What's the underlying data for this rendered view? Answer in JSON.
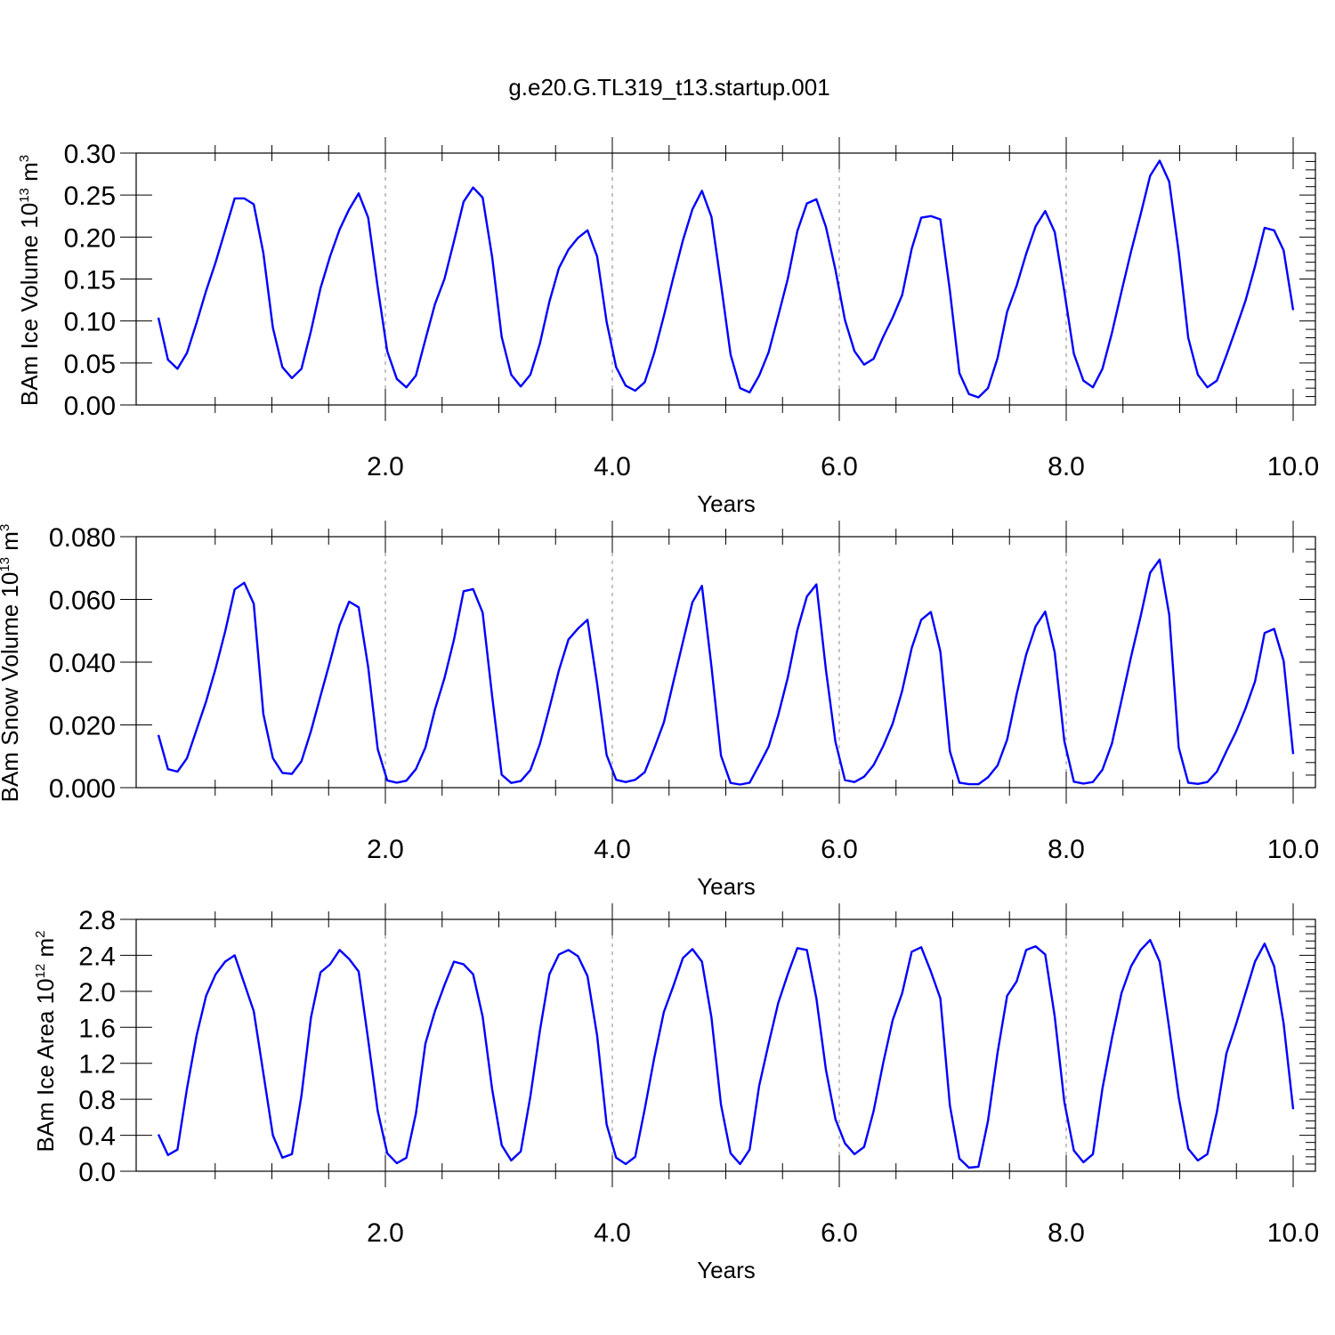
{
  "figure_title": "g.e20.G.TL319_t13.startup.001",
  "line_color": "#0000ff",
  "chart_data": [
    {
      "type": "line",
      "title": "",
      "xlabel": "Years",
      "ylabel": "BAm Ice Volume 10",
      "ylabel_sup": "13",
      "ylabel_unit": " m",
      "ylabel_unit_sup": "3",
      "xlim": [
        0.0,
        10.0
      ],
      "ylim": [
        0.0,
        0.3
      ],
      "grid": "vertical dashed at major x ticks",
      "x_ticks": [
        2.0,
        4.0,
        6.0,
        8.0,
        10.0
      ],
      "x_tick_labels": [
        "2.0",
        "4.0",
        "6.0",
        "8.0",
        "10.0"
      ],
      "y_ticks": [
        0.0,
        0.05,
        0.1,
        0.15,
        0.2,
        0.25,
        0.3
      ],
      "y_tick_labels": [
        "0.00",
        "0.05",
        "0.10",
        "0.15",
        "0.20",
        "0.25",
        "0.30"
      ],
      "series": [
        {
          "values": [
            0.104,
            0.054,
            0.043,
            0.062,
            0.098,
            0.136,
            0.17,
            0.208,
            0.246,
            0.246,
            0.239,
            0.181,
            0.092,
            0.045,
            0.032,
            0.043,
            0.088,
            0.139,
            0.177,
            0.209,
            0.233,
            0.252,
            0.223,
            0.14,
            0.064,
            0.031,
            0.021,
            0.035,
            0.078,
            0.12,
            0.15,
            0.195,
            0.242,
            0.259,
            0.247,
            0.176,
            0.081,
            0.036,
            0.022,
            0.036,
            0.073,
            0.123,
            0.163,
            0.185,
            0.199,
            0.208,
            0.177,
            0.099,
            0.045,
            0.023,
            0.017,
            0.027,
            0.062,
            0.106,
            0.152,
            0.196,
            0.233,
            0.255,
            0.224,
            0.144,
            0.06,
            0.02,
            0.015,
            0.035,
            0.063,
            0.106,
            0.15,
            0.207,
            0.24,
            0.245,
            0.212,
            0.161,
            0.101,
            0.064,
            0.048,
            0.055,
            0.081,
            0.104,
            0.131,
            0.186,
            0.223,
            0.225,
            0.221,
            0.136,
            0.038,
            0.013,
            0.009,
            0.02,
            0.056,
            0.111,
            0.142,
            0.18,
            0.213,
            0.231,
            0.206,
            0.135,
            0.061,
            0.029,
            0.021,
            0.043,
            0.086,
            0.135,
            0.183,
            0.227,
            0.273,
            0.291,
            0.266,
            0.182,
            0.08,
            0.036,
            0.021,
            0.029,
            0.059,
            0.091,
            0.124,
            0.165,
            0.211,
            0.208,
            0.184,
            0.113
          ]
        }
      ]
    },
    {
      "type": "line",
      "title": "",
      "xlabel": "Years",
      "ylabel": "BAm Snow Volume 10",
      "ylabel_sup": "13",
      "ylabel_unit": " m",
      "ylabel_unit_sup": "3",
      "xlim": [
        0.0,
        10.0
      ],
      "ylim": [
        0.0,
        0.08
      ],
      "grid": "vertical dashed at major x ticks",
      "x_ticks": [
        2.0,
        4.0,
        6.0,
        8.0,
        10.0
      ],
      "x_tick_labels": [
        "2.0",
        "4.0",
        "6.0",
        "8.0",
        "10.0"
      ],
      "y_ticks": [
        0.0,
        0.02,
        0.04,
        0.06,
        0.08
      ],
      "y_tick_labels": [
        "0.000",
        "0.020",
        "0.040",
        "0.060",
        "0.080"
      ],
      "series": [
        {
          "values": [
            0.0168,
            0.0059,
            0.0051,
            0.0094,
            0.0185,
            0.0275,
            0.038,
            0.0498,
            0.0632,
            0.0653,
            0.0586,
            0.0235,
            0.0094,
            0.0047,
            0.0044,
            0.0084,
            0.018,
            0.0292,
            0.0403,
            0.0518,
            0.0593,
            0.0575,
            0.0384,
            0.0123,
            0.0023,
            0.0016,
            0.0022,
            0.0059,
            0.0128,
            0.0249,
            0.0349,
            0.0472,
            0.0626,
            0.0633,
            0.0558,
            0.0291,
            0.0041,
            0.0015,
            0.0021,
            0.0056,
            0.0139,
            0.0254,
            0.0374,
            0.0472,
            0.0507,
            0.0535,
            0.0332,
            0.0104,
            0.0025,
            0.0018,
            0.0025,
            0.0049,
            0.0125,
            0.0208,
            0.0337,
            0.0464,
            0.0591,
            0.0643,
            0.0386,
            0.0102,
            0.0015,
            0.001,
            0.0016,
            0.0072,
            0.0131,
            0.0231,
            0.035,
            0.0502,
            0.0609,
            0.0648,
            0.0376,
            0.0146,
            0.0024,
            0.0018,
            0.0035,
            0.0072,
            0.0132,
            0.0204,
            0.0309,
            0.0445,
            0.0535,
            0.056,
            0.0434,
            0.0116,
            0.0016,
            0.0011,
            0.0011,
            0.0033,
            0.0071,
            0.0153,
            0.0298,
            0.0424,
            0.0515,
            0.0561,
            0.0431,
            0.0148,
            0.0019,
            0.0013,
            0.0018,
            0.0057,
            0.0141,
            0.0278,
            0.0418,
            0.0546,
            0.0685,
            0.0727,
            0.0552,
            0.0128,
            0.0016,
            0.0012,
            0.0018,
            0.0051,
            0.0116,
            0.0178,
            0.0252,
            0.0338,
            0.0493,
            0.0506,
            0.0404,
            0.0107
          ]
        }
      ]
    },
    {
      "type": "line",
      "title": "",
      "xlabel": "Years",
      "ylabel": "BAm Ice Area 10",
      "ylabel_sup": "12",
      "ylabel_unit": " m",
      "ylabel_unit_sup": "2",
      "xlim": [
        0.0,
        10.0
      ],
      "ylim": [
        0.0,
        2.8
      ],
      "grid": "vertical dashed at major x ticks",
      "x_ticks": [
        2.0,
        4.0,
        6.0,
        8.0,
        10.0
      ],
      "x_tick_labels": [
        "2.0",
        "4.0",
        "6.0",
        "8.0",
        "10.0"
      ],
      "y_ticks": [
        0.0,
        0.4,
        0.8,
        1.2,
        1.6,
        2.0,
        2.4,
        2.8
      ],
      "y_tick_labels": [
        "0.0",
        "0.4",
        "0.8",
        "1.2",
        "1.6",
        "2.0",
        "2.4",
        "2.8"
      ],
      "series": [
        {
          "values": [
            0.41,
            0.18,
            0.24,
            0.92,
            1.51,
            1.95,
            2.19,
            2.33,
            2.4,
            2.09,
            1.78,
            1.09,
            0.4,
            0.15,
            0.19,
            0.84,
            1.71,
            2.21,
            2.3,
            2.46,
            2.36,
            2.22,
            1.46,
            0.67,
            0.2,
            0.09,
            0.15,
            0.64,
            1.42,
            1.78,
            2.07,
            2.33,
            2.3,
            2.19,
            1.72,
            0.91,
            0.29,
            0.12,
            0.22,
            0.83,
            1.56,
            2.19,
            2.41,
            2.46,
            2.39,
            2.17,
            1.51,
            0.52,
            0.15,
            0.08,
            0.16,
            0.69,
            1.26,
            1.77,
            2.06,
            2.37,
            2.47,
            2.33,
            1.71,
            0.74,
            0.2,
            0.08,
            0.24,
            0.95,
            1.42,
            1.87,
            2.19,
            2.48,
            2.46,
            1.92,
            1.13,
            0.58,
            0.31,
            0.19,
            0.27,
            0.67,
            1.2,
            1.68,
            1.98,
            2.44,
            2.49,
            2.22,
            1.92,
            0.73,
            0.14,
            0.04,
            0.05,
            0.56,
            1.32,
            1.95,
            2.11,
            2.46,
            2.5,
            2.41,
            1.72,
            0.77,
            0.23,
            0.1,
            0.19,
            0.92,
            1.48,
            1.98,
            2.28,
            2.46,
            2.57,
            2.33,
            1.59,
            0.82,
            0.25,
            0.12,
            0.19,
            0.66,
            1.31,
            1.63,
            1.98,
            2.33,
            2.53,
            2.28,
            1.64,
            0.69
          ]
        }
      ]
    }
  ]
}
